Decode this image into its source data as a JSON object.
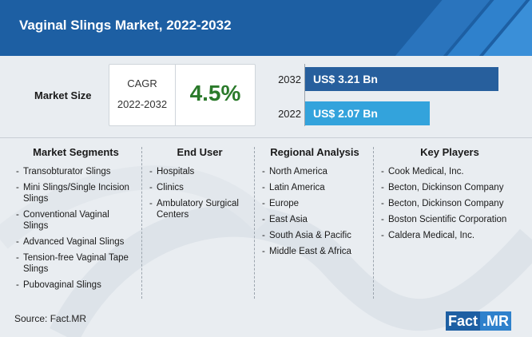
{
  "title": "Vaginal Slings Market, 2022-2032",
  "market_size_label": "Market Size",
  "cagr": {
    "label": "CAGR",
    "years": "2022-2032",
    "value": "4.5%"
  },
  "colors": {
    "header": "#1d5fa3",
    "bar_2032": "#275f9d",
    "bar_2022": "#33a3dc",
    "cagr_value": "#2b7a2b"
  },
  "chart_data": {
    "type": "bar",
    "categories": [
      "2032",
      "2022"
    ],
    "values": [
      3.21,
      2.07
    ],
    "value_labels": [
      "US$ 3.21 Bn",
      "US$ 2.07 Bn"
    ],
    "xlabel": "",
    "ylabel": "",
    "xlim": [
      0,
      3.21
    ]
  },
  "columns": [
    {
      "heading": "Market Segments",
      "items": [
        "Transobturator Slings",
        "Mini Slings/Single Incision Slings",
        "Conventional Vaginal Slings",
        "Advanced Vaginal Slings",
        "Tension-free Vaginal Tape Slings",
        "Pubovaginal Slings"
      ]
    },
    {
      "heading": "End User",
      "items": [
        "Hospitals",
        "Clinics",
        "Ambulatory Surgical Centers"
      ]
    },
    {
      "heading": "Regional Analysis",
      "items": [
        "North America",
        "Latin America",
        "Europe",
        "East Asia",
        "South Asia & Pacific",
        "Middle East & Africa"
      ]
    },
    {
      "heading": "Key Players",
      "items": [
        "Cook Medical, Inc.",
        "Becton, Dickinson Company",
        "Becton, Dickinson Company",
        "Boston Scientific Corporation",
        "Caldera Medical, Inc."
      ]
    }
  ],
  "source": "Source: Fact.MR",
  "logo": {
    "left": "Fact",
    "right": ".MR"
  }
}
